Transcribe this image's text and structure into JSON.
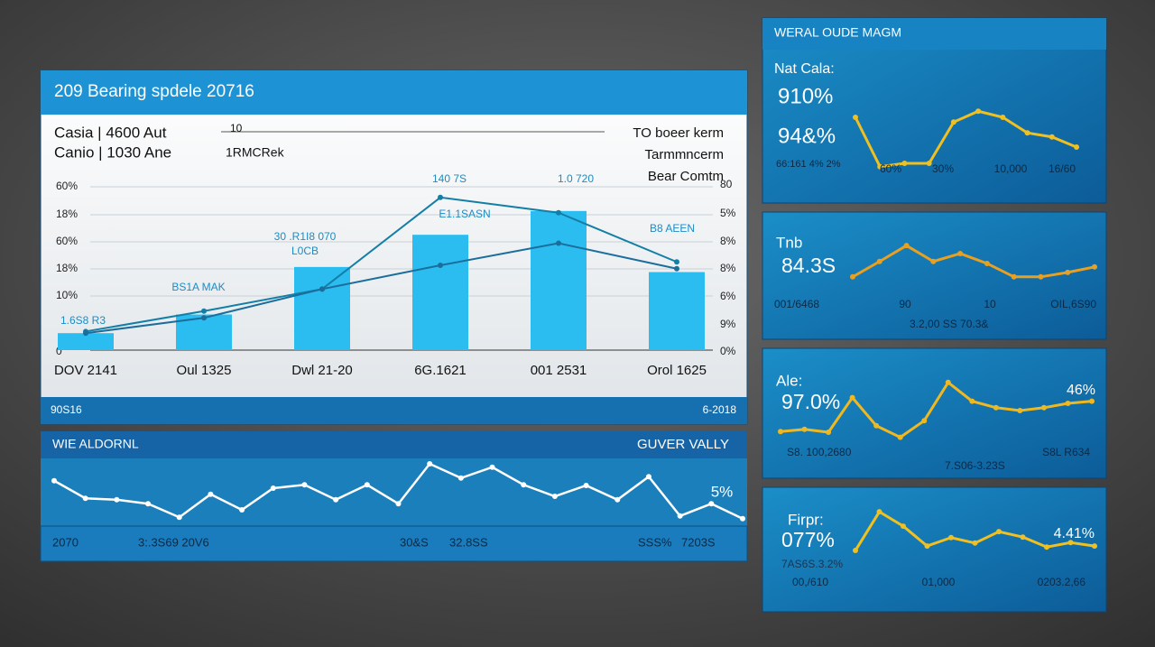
{
  "chart_data": [
    {
      "type": "bar",
      "title": "209 Bearing spdele 20716",
      "legend": [
        "Casia | 4600 Aut",
        "Canio | 1030 Ane"
      ],
      "marker": "10",
      "series_label": "1RMCRek",
      "notes": [
        "TO boeer kerm",
        "Tarmmncerm",
        "Bear Comtm"
      ],
      "left_labels": [
        "60%",
        "18%",
        "60%",
        "18%",
        "10%",
        "0"
      ],
      "right_labels": [
        "80",
        "5%",
        "8%",
        "8%",
        "6%",
        "9%",
        "0%"
      ],
      "annotations": [
        "140 7S",
        "1.0 720",
        "30 .R1I8 070",
        "L0CB",
        "BS1A MAK",
        "E1.1SASN",
        "B8 AEEN",
        "1.6S8 R3"
      ],
      "categories": [
        "DOV 2141",
        "Oul 1325",
        "Dwl 21-20",
        "6G.1621",
        "001 2531",
        "Orol 1625"
      ],
      "values": [
        10,
        21,
        49,
        68,
        82,
        46
      ],
      "color": "#2cbdf0",
      "lines": [
        {
          "color": "#137fa6",
          "values": [
            11,
            23,
            36,
            90,
            81,
            52
          ]
        },
        {
          "color": "#1b6e9c",
          "values": [
            10,
            19,
            36,
            50,
            63,
            48
          ]
        }
      ],
      "ylim": [
        0,
        100
      ],
      "footer_left": "90S16",
      "footer_right": "6-2018"
    },
    {
      "type": "line",
      "header_left": "WIE ALDORNL",
      "header_right": "GUVER VALLY",
      "label": "5%",
      "values": [
        67,
        41,
        39,
        33,
        13,
        47,
        24,
        56,
        61,
        39,
        61,
        33,
        92,
        71,
        87,
        61,
        44,
        60,
        39,
        73,
        15,
        33,
        11
      ],
      "color": "#ffffff",
      "ylim": [
        0,
        100
      ],
      "footer": [
        "2070",
        "3:.3S69 20V6",
        "30&S",
        "32.8SS",
        "SSS%",
        "7203S"
      ]
    },
    {
      "type": "line",
      "header": "WERAL OUDE MAGM",
      "label": "Nat Cala:",
      "big": [
        "910%",
        "94&%"
      ],
      "small": "66:161 4% 2%",
      "axis": [
        "60%",
        "30%",
        "10,000",
        "16/60"
      ],
      "values": [
        80,
        7,
        12,
        12,
        73,
        89,
        80,
        57,
        51,
        36
      ],
      "color": "#f0c020",
      "ylim": [
        0,
        100
      ]
    },
    {
      "type": "line",
      "label": "Tnb",
      "big": [
        "84.3S"
      ],
      "axis": [
        "001/6468",
        "90",
        "10",
        "OIL,6S90"
      ],
      "small": "3.2,00 SS 70.3&",
      "values": [
        24,
        55,
        87,
        55,
        71,
        51,
        24,
        24,
        33,
        44
      ],
      "color": "#e8a020",
      "ylim": [
        0,
        100
      ]
    },
    {
      "type": "line",
      "label": "Ale:",
      "big": [
        "97.0%"
      ],
      "side": "46%",
      "axis": [
        "S8. 100,2680",
        "S8L R634"
      ],
      "small": "7.S06-3.23S",
      "values": [
        21,
        24,
        20,
        68,
        29,
        13,
        36,
        89,
        63,
        54,
        50,
        54,
        60,
        63
      ],
      "color": "#f0b820",
      "ylim": [
        0,
        100
      ]
    },
    {
      "type": "line",
      "label": "Firpr:",
      "big": [
        "077%"
      ],
      "side": "4.41%",
      "small": "7AS6S.3.2%",
      "axis": [
        "00,/610",
        "01,000",
        "0203.2,66"
      ],
      "values": [
        9,
        87,
        58,
        18,
        35,
        24,
        47,
        36,
        16,
        25,
        18
      ],
      "color": "#f0c020",
      "ylim": [
        0,
        100
      ]
    }
  ]
}
